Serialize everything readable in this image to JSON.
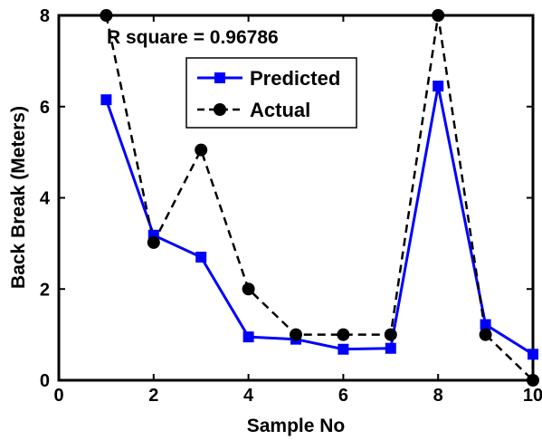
{
  "chart_data": {
    "type": "line",
    "xlabel": "Sample No",
    "ylabel": "Back Break (Meters)",
    "xlim": [
      0,
      10
    ],
    "ylim": [
      0,
      8
    ],
    "x_ticks": [
      "0",
      "2",
      "4",
      "6",
      "8",
      "10"
    ],
    "y_ticks": [
      "0",
      "2",
      "4",
      "6",
      "8"
    ],
    "annotation": "R square = 0.96786",
    "legend_position": "top-center",
    "grid": false,
    "x": [
      1,
      2,
      3,
      4,
      5,
      6,
      7,
      8,
      9,
      10
    ],
    "series": [
      {
        "name": "Predicted",
        "color": "#0000ff",
        "line_style": "solid",
        "marker": "square",
        "values": [
          6.15,
          3.18,
          2.7,
          0.95,
          0.9,
          0.68,
          0.7,
          6.45,
          1.22,
          0.57
        ]
      },
      {
        "name": "Actual",
        "color": "#000000",
        "line_style": "dashed",
        "marker": "circle",
        "values": [
          8,
          3.02,
          5.05,
          2.0,
          1.0,
          1.0,
          1.0,
          8,
          1.0,
          0
        ]
      }
    ]
  }
}
